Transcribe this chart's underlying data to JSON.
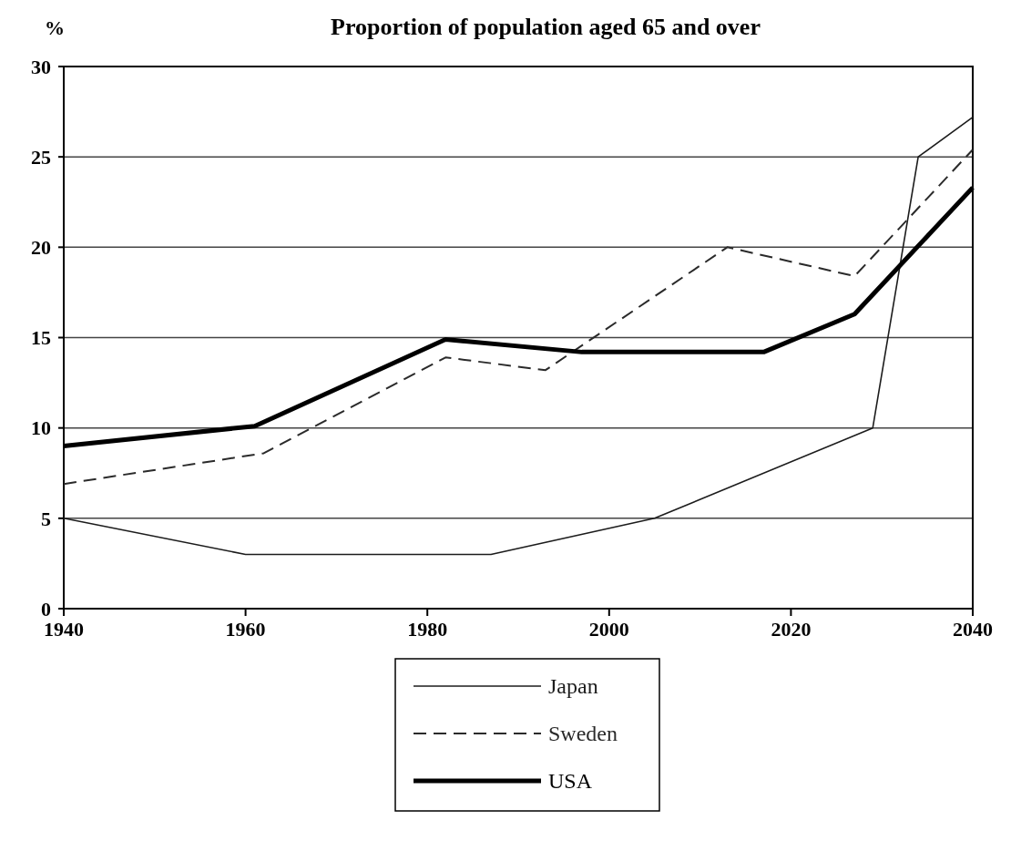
{
  "chart_data": {
    "type": "line",
    "title": "Proportion of population aged 65 and over",
    "ylabel": "%",
    "xlim": [
      1940,
      2040
    ],
    "xticks": [
      1940,
      1960,
      1980,
      2000,
      2020,
      2040
    ],
    "ylim": [
      0,
      30
    ],
    "yticks": [
      0,
      5,
      10,
      15,
      20,
      25,
      30
    ],
    "grid": "y",
    "legend": "bottom",
    "marker": "none",
    "series": [
      {
        "name": "Japan",
        "color": "#1c1c1c",
        "line_style": "solid",
        "x": [
          1940,
          1960,
          1987,
          2005,
          2029,
          2034,
          2040
        ],
        "values": [
          5,
          3,
          3,
          5,
          10,
          25,
          27.2
        ]
      },
      {
        "name": "Sweden",
        "color": "#2a2a2a",
        "line_style": "dashed",
        "x": [
          1940,
          1962,
          1982,
          1993,
          2013,
          2027,
          2040
        ],
        "values": [
          6.9,
          8.6,
          13.9,
          13.2,
          20,
          18.4,
          25.4
        ]
      },
      {
        "name": "USA",
        "color": "#000000",
        "line_style": "solid",
        "x": [
          1940,
          1961,
          1982,
          1997,
          2017,
          2027,
          2040
        ],
        "values": [
          9,
          10.1,
          14.9,
          14.2,
          14.2,
          16.3,
          23.3
        ]
      }
    ]
  }
}
